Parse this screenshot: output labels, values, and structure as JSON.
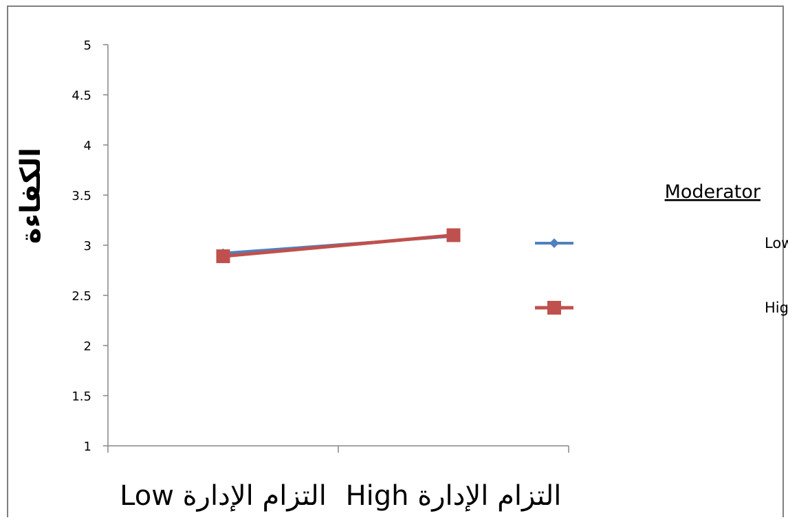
{
  "chart_data": {
    "type": "line",
    "ylabel": "الكفاءة",
    "categories": [
      "التزام الإدارة Low",
      "التزام الإدارة High"
    ],
    "ylim": [
      1,
      5
    ],
    "yticks": [
      "1",
      "1.5",
      "2",
      "2.5",
      "3",
      "3.5",
      "4",
      "4.5",
      "5"
    ],
    "legend_title": "Moderator",
    "legend_position": "right",
    "grid": false,
    "series": [
      {
        "name": "المعتقدات التنظيمية Low",
        "values": [
          2.92,
          3.09
        ],
        "color": "#4f81bd",
        "marker": "diamond"
      },
      {
        "name": "المعتقدات التنظيمية High",
        "values": [
          2.89,
          3.1
        ],
        "color": "#c0504d",
        "marker": "square"
      }
    ]
  }
}
